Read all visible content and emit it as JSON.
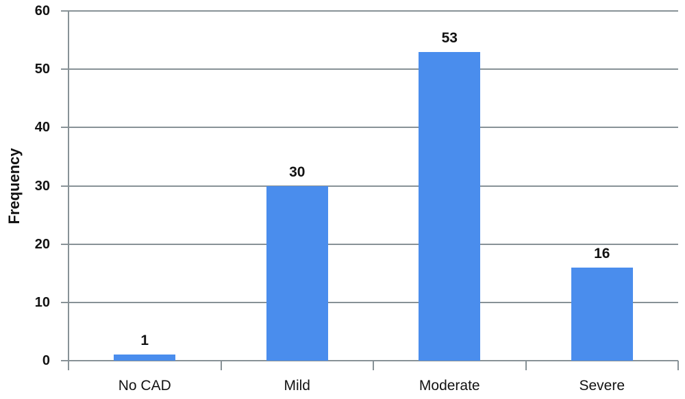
{
  "chart_data": {
    "type": "bar",
    "title": "",
    "categories": [
      "No CAD",
      "Mild",
      "Moderate",
      "Severe"
    ],
    "values": [
      1,
      30,
      53,
      16
    ],
    "value_labels": [
      "1",
      "30",
      "53",
      "16"
    ],
    "xlabel": "",
    "ylabel": "Frequency",
    "ylim": [
      0,
      60
    ],
    "yticks": [
      0,
      10,
      20,
      30,
      40,
      50,
      60
    ],
    "grid": "horizontal",
    "legend": "none",
    "colors": {
      "bar": "#4a8ded",
      "axis": "#879196",
      "text": "#121212",
      "background": "#ffffff"
    }
  }
}
